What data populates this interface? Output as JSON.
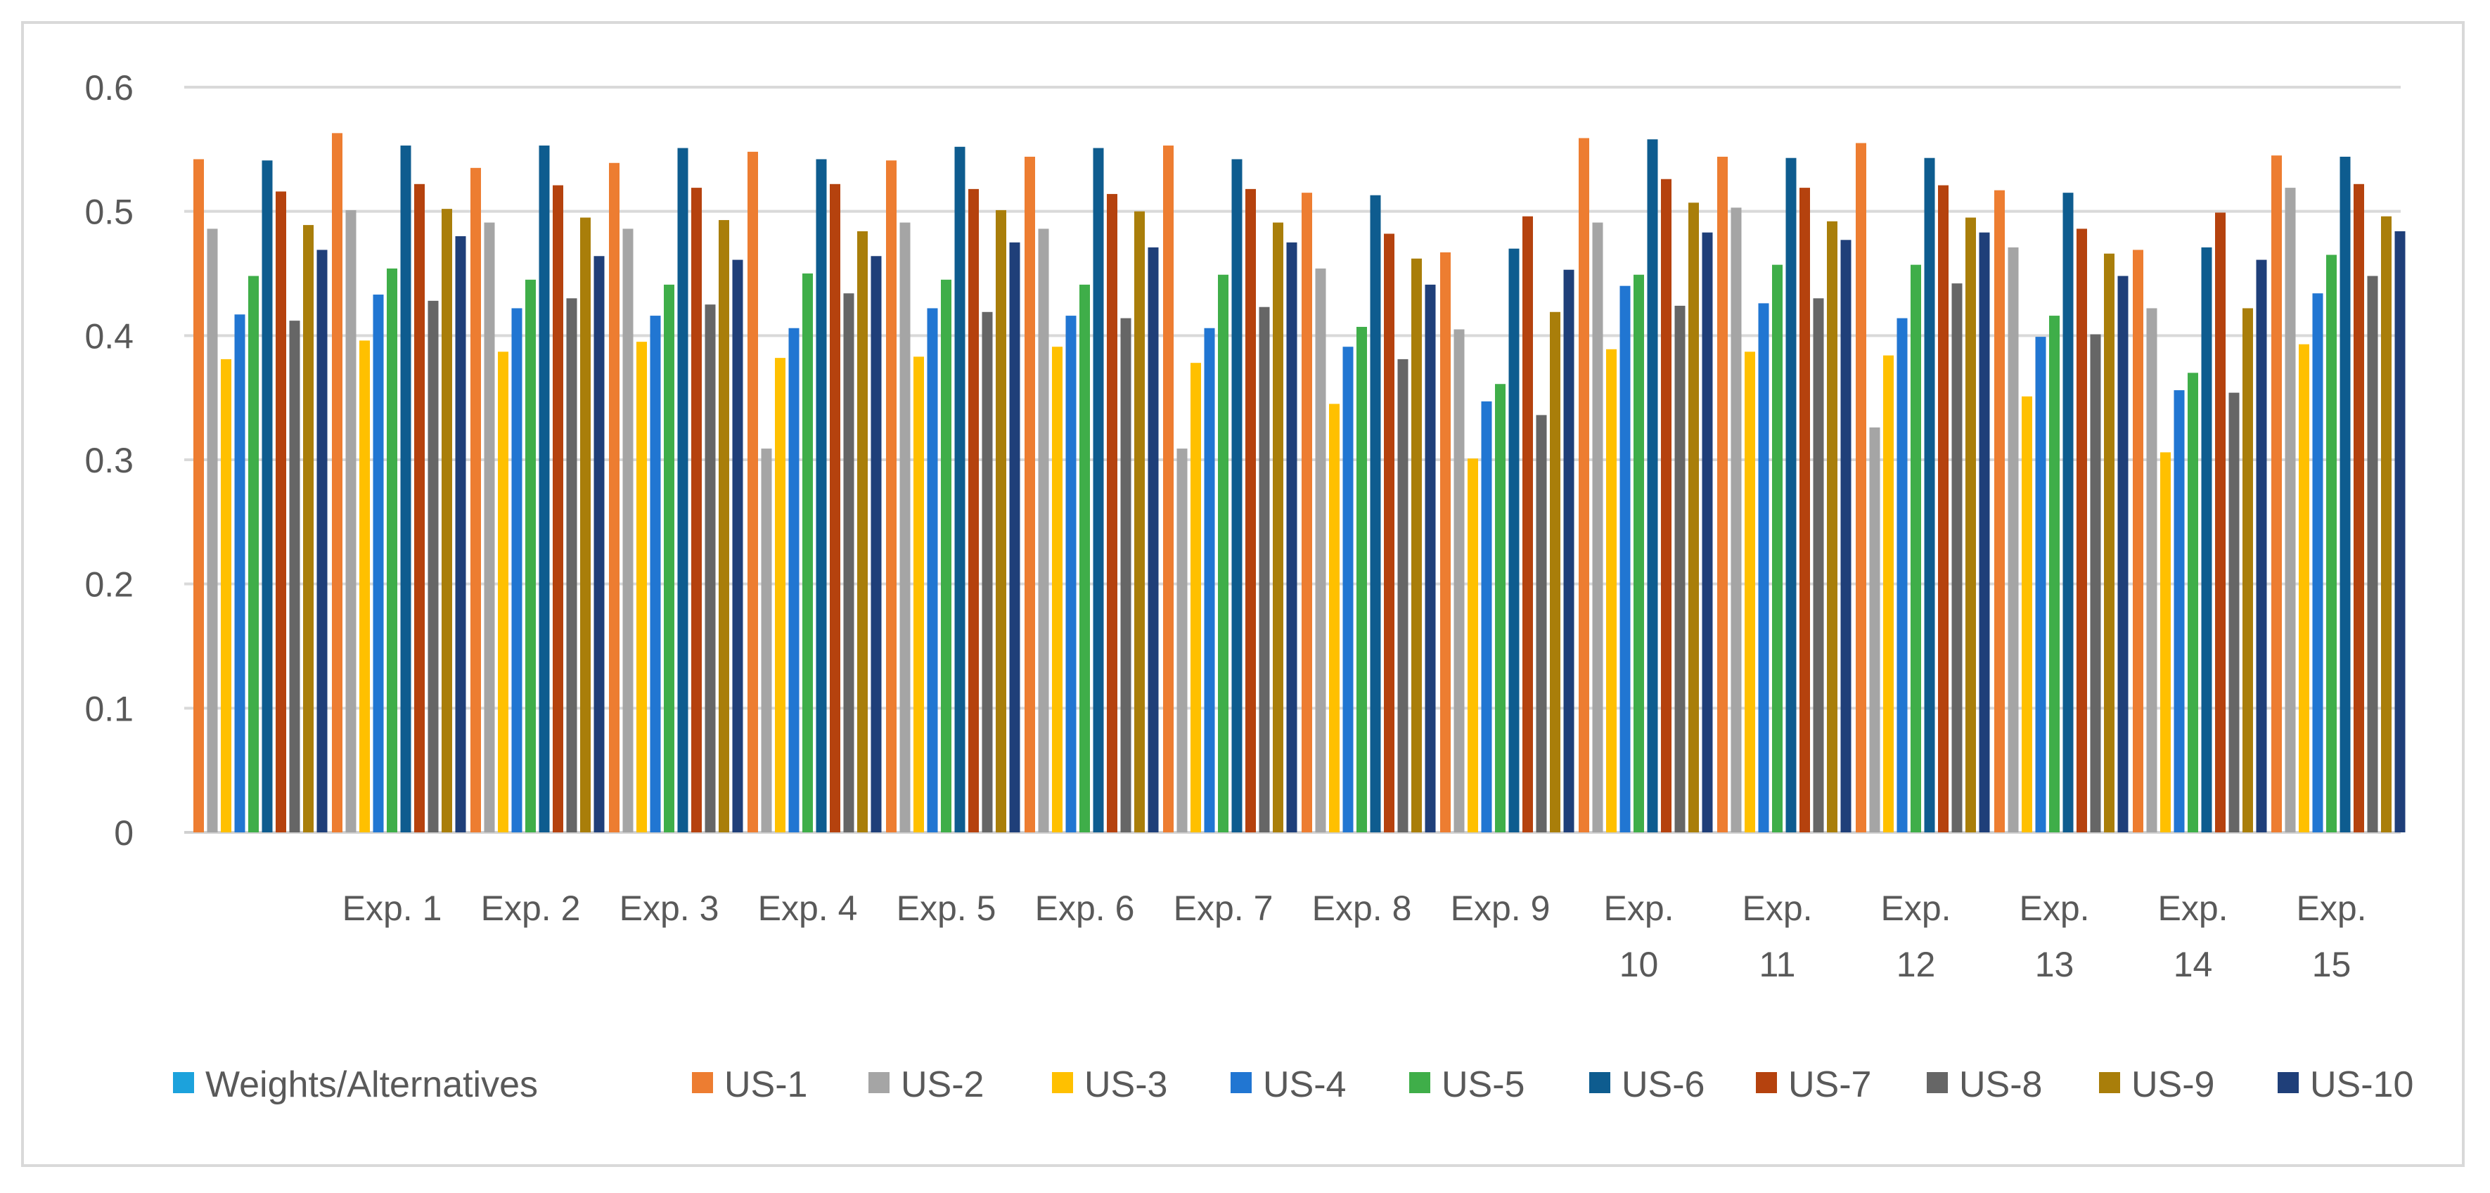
{
  "chart_data": {
    "type": "bar",
    "title": "",
    "xlabel": "",
    "ylabel": "",
    "ylim": [
      0,
      0.6
    ],
    "yticks": [
      "0",
      "0.1",
      "0.2",
      "0.3",
      "0.4",
      "0.5",
      "0.6"
    ],
    "grid": true,
    "legend_position": "bottom",
    "categories": [
      "",
      "Exp. 1",
      "Exp. 2",
      "Exp. 3",
      "Exp. 4",
      "Exp. 5",
      "Exp. 6",
      "Exp. 7",
      "Exp. 8",
      "Exp. 9",
      "Exp. 10",
      "Exp. 11",
      "Exp. 12",
      "Exp. 13",
      "Exp. 14",
      "Exp. 15"
    ],
    "series": [
      {
        "name": "Weights/Alternatives",
        "color": "#1ca2dc",
        "values": [
          0,
          0,
          0,
          0,
          0,
          0,
          0,
          0,
          0,
          0,
          0,
          0,
          0,
          0,
          0,
          0
        ]
      },
      {
        "name": "US-1",
        "color": "#ed7d31",
        "values": [
          0.542,
          0.563,
          0.535,
          0.539,
          0.548,
          0.541,
          0.544,
          0.553,
          0.515,
          0.467,
          0.559,
          0.544,
          0.555,
          0.517,
          0.469,
          0.545
        ]
      },
      {
        "name": "US-2",
        "color": "#a5a5a5",
        "values": [
          0.486,
          0.501,
          0.491,
          0.486,
          0.309,
          0.491,
          0.486,
          0.309,
          0.454,
          0.405,
          0.491,
          0.503,
          0.326,
          0.471,
          0.422,
          0.519
        ]
      },
      {
        "name": "US-3",
        "color": "#ffc000",
        "values": [
          0.381,
          0.396,
          0.387,
          0.395,
          0.382,
          0.383,
          0.391,
          0.378,
          0.345,
          0.301,
          0.389,
          0.387,
          0.384,
          0.351,
          0.306,
          0.393
        ]
      },
      {
        "name": "US-4",
        "color": "#2176d2",
        "values": [
          0.417,
          0.433,
          0.422,
          0.416,
          0.406,
          0.422,
          0.416,
          0.406,
          0.391,
          0.347,
          0.44,
          0.426,
          0.414,
          0.399,
          0.356,
          0.434
        ]
      },
      {
        "name": "US-5",
        "color": "#3fae49",
        "values": [
          0.448,
          0.454,
          0.445,
          0.441,
          0.45,
          0.445,
          0.441,
          0.449,
          0.407,
          0.361,
          0.449,
          0.457,
          0.457,
          0.416,
          0.37,
          0.465
        ]
      },
      {
        "name": "US-6",
        "color": "#0e5c8f",
        "values": [
          0.541,
          0.553,
          0.553,
          0.551,
          0.542,
          0.552,
          0.551,
          0.542,
          0.513,
          0.47,
          0.558,
          0.543,
          0.543,
          0.515,
          0.471,
          0.544
        ]
      },
      {
        "name": "US-7",
        "color": "#b5420e",
        "values": [
          0.516,
          0.522,
          0.521,
          0.519,
          0.522,
          0.518,
          0.514,
          0.518,
          0.482,
          0.496,
          0.526,
          0.519,
          0.521,
          0.486,
          0.499,
          0.522
        ]
      },
      {
        "name": "US-8",
        "color": "#666666",
        "values": [
          0.412,
          0.428,
          0.43,
          0.425,
          0.434,
          0.419,
          0.414,
          0.423,
          0.381,
          0.336,
          0.424,
          0.43,
          0.442,
          0.401,
          0.354,
          0.448
        ]
      },
      {
        "name": "US-9",
        "color": "#a97e0a",
        "values": [
          0.489,
          0.502,
          0.495,
          0.493,
          0.484,
          0.501,
          0.5,
          0.491,
          0.462,
          0.419,
          0.507,
          0.492,
          0.495,
          0.466,
          0.422,
          0.496
        ]
      },
      {
        "name": "US-10",
        "color": "#1f3f79",
        "values": [
          0.469,
          0.48,
          0.464,
          0.461,
          0.464,
          0.475,
          0.471,
          0.475,
          0.441,
          0.453,
          0.483,
          0.477,
          0.483,
          0.448,
          0.461,
          0.484
        ]
      }
    ]
  }
}
